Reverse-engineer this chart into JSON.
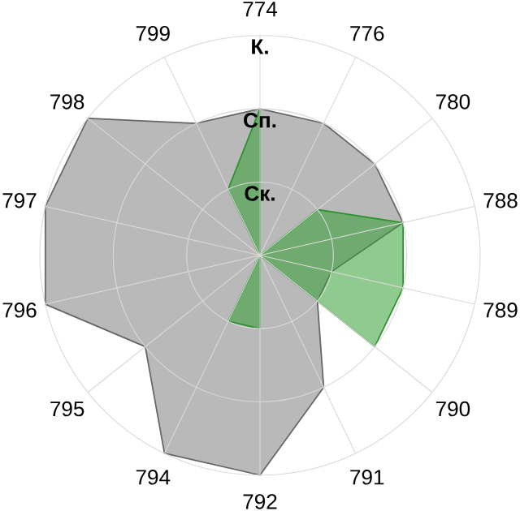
{
  "chart_data": {
    "type": "radar",
    "categories": [
      "774",
      "776",
      "780",
      "788",
      "789",
      "790",
      "791",
      "792",
      "794",
      "795",
      "796",
      "797",
      "798",
      "799"
    ],
    "series": [
      {
        "color": "#b9b9b9",
        "values": [
          2,
          2,
          2,
          2,
          1,
          1,
          2,
          3,
          3,
          2,
          3,
          3,
          3,
          2
        ]
      },
      {
        "color": "#33a033",
        "values": [
          2,
          0,
          1,
          2,
          2,
          2,
          0,
          1,
          1,
          0,
          0,
          0,
          0,
          1
        ]
      }
    ],
    "ylim": [
      0,
      3
    ],
    "yticks": [
      {
        "value": 1,
        "label": "Ск."
      },
      {
        "value": 2,
        "label": "Сп."
      },
      {
        "value": 3,
        "label": "К."
      }
    ],
    "grid": true
  }
}
